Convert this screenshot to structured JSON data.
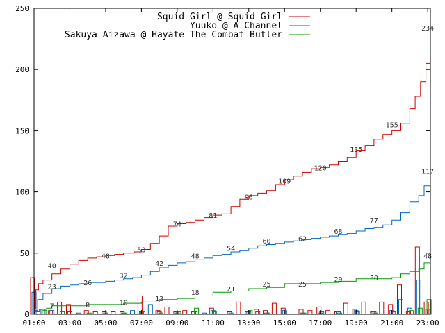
{
  "chart_data": {
    "type": "line",
    "title": "",
    "xlabel": "",
    "ylabel": "",
    "ylim": [
      0,
      250
    ],
    "yticks": [
      0,
      50,
      100,
      150,
      200,
      250
    ],
    "x_hours": [
      1,
      23.15
    ],
    "xticks": [
      "01:00",
      "03:00",
      "05:00",
      "07:00",
      "09:00",
      "11:00",
      "13:00",
      "15:00",
      "17:00",
      "19:00",
      "21:00",
      "23:00"
    ],
    "legend_position": "top-right",
    "grid": false,
    "series": [
      {
        "name": "Squid Girl @ Squid Girl",
        "color": "#cc0000",
        "cumulative": [
          [
            1.0,
            5
          ],
          [
            1.1,
            20
          ],
          [
            1.25,
            25
          ],
          [
            1.5,
            28
          ],
          [
            2,
            33
          ],
          [
            2.5,
            37
          ],
          [
            3,
            41
          ],
          [
            3.5,
            44
          ],
          [
            4,
            46
          ],
          [
            4.5,
            47
          ],
          [
            5,
            48
          ],
          [
            5.5,
            49
          ],
          [
            6,
            50
          ],
          [
            6.6,
            51
          ],
          [
            7,
            53
          ],
          [
            7.5,
            58
          ],
          [
            8,
            64
          ],
          [
            8.5,
            72
          ],
          [
            9,
            74
          ],
          [
            9.5,
            75
          ],
          [
            10,
            77
          ],
          [
            10.5,
            79
          ],
          [
            11,
            81
          ],
          [
            11.5,
            82
          ],
          [
            12,
            88
          ],
          [
            12.5,
            94
          ],
          [
            13,
            97
          ],
          [
            13.5,
            99
          ],
          [
            14,
            101
          ],
          [
            14.5,
            106
          ],
          [
            15,
            110
          ],
          [
            15.5,
            113
          ],
          [
            16,
            116
          ],
          [
            16.5,
            119
          ],
          [
            17,
            120
          ],
          [
            17.5,
            122
          ],
          [
            18,
            125
          ],
          [
            18.5,
            128
          ],
          [
            19,
            134
          ],
          [
            19.5,
            138
          ],
          [
            20,
            143
          ],
          [
            20.5,
            147
          ],
          [
            21,
            150
          ],
          [
            21.5,
            156
          ],
          [
            22,
            168
          ],
          [
            22.3,
            178
          ],
          [
            22.6,
            190
          ],
          [
            22.9,
            205
          ],
          [
            23.15,
            234
          ]
        ],
        "labels": [
          [
            2,
            40
          ],
          [
            5,
            48
          ],
          [
            7,
            53
          ],
          [
            9,
            74
          ],
          [
            11,
            81
          ],
          [
            13,
            96
          ],
          [
            15,
            109
          ],
          [
            17,
            120
          ],
          [
            19,
            135
          ],
          [
            21,
            155
          ],
          [
            23,
            234
          ]
        ],
        "hourly": [
          [
            1,
            30
          ],
          [
            2,
            3
          ],
          [
            2.5,
            10
          ],
          [
            3,
            8
          ],
          [
            4,
            3
          ],
          [
            4.5,
            2
          ],
          [
            5,
            2
          ],
          [
            5.5,
            2
          ],
          [
            6,
            2
          ],
          [
            7,
            15
          ],
          [
            8,
            3
          ],
          [
            8.5,
            6
          ],
          [
            9,
            2
          ],
          [
            9.5,
            3
          ],
          [
            10,
            2
          ],
          [
            11,
            5
          ],
          [
            12,
            2
          ],
          [
            12.5,
            10
          ],
          [
            13,
            2
          ],
          [
            13.5,
            4
          ],
          [
            14,
            3
          ],
          [
            14.5,
            9
          ],
          [
            15,
            5
          ],
          [
            16,
            4
          ],
          [
            16.5,
            3
          ],
          [
            17,
            6
          ],
          [
            17.5,
            3
          ],
          [
            18,
            2
          ],
          [
            18.5,
            9
          ],
          [
            19,
            4
          ],
          [
            19.5,
            10
          ],
          [
            20,
            2
          ],
          [
            20.5,
            10
          ],
          [
            21,
            8
          ],
          [
            21.5,
            24
          ],
          [
            22,
            2
          ],
          [
            22.5,
            55
          ],
          [
            23,
            10
          ]
        ]
      },
      {
        "name": "Yuuko @ A Channel",
        "color": "#0066bb",
        "cumulative": [
          [
            1.0,
            3
          ],
          [
            1.2,
            12
          ],
          [
            1.5,
            17
          ],
          [
            2,
            21
          ],
          [
            2.5,
            23
          ],
          [
            3,
            24
          ],
          [
            3.5,
            25
          ],
          [
            4,
            26
          ],
          [
            4.5,
            26
          ],
          [
            5,
            27
          ],
          [
            5.5,
            28
          ],
          [
            6,
            29
          ],
          [
            6.5,
            30
          ],
          [
            7,
            32
          ],
          [
            7.5,
            35
          ],
          [
            8,
            38
          ],
          [
            8.5,
            40
          ],
          [
            9,
            42
          ],
          [
            9.5,
            43
          ],
          [
            10,
            45
          ],
          [
            10.5,
            46
          ],
          [
            11,
            48
          ],
          [
            11.5,
            49
          ],
          [
            12,
            51
          ],
          [
            12.5,
            52
          ],
          [
            13,
            54
          ],
          [
            13.5,
            56
          ],
          [
            14,
            57
          ],
          [
            14.5,
            58
          ],
          [
            15,
            59
          ],
          [
            15.5,
            60
          ],
          [
            16,
            61
          ],
          [
            16.5,
            62
          ],
          [
            17,
            63
          ],
          [
            17.5,
            64
          ],
          [
            18,
            65
          ],
          [
            18.5,
            66
          ],
          [
            19,
            68
          ],
          [
            19.5,
            70
          ],
          [
            20,
            71
          ],
          [
            20.5,
            73
          ],
          [
            21,
            77
          ],
          [
            21.5,
            83
          ],
          [
            22,
            92
          ],
          [
            22.5,
            97
          ],
          [
            22.8,
            105
          ],
          [
            23.15,
            117
          ]
        ],
        "labels": [
          [
            2,
            23
          ],
          [
            4,
            26
          ],
          [
            6,
            32
          ],
          [
            8,
            42
          ],
          [
            10,
            48
          ],
          [
            12,
            54
          ],
          [
            14,
            60
          ],
          [
            16,
            62
          ],
          [
            18,
            68
          ],
          [
            20,
            77
          ],
          [
            23,
            117
          ]
        ],
        "hourly": [
          [
            1,
            18
          ],
          [
            1.5,
            4
          ],
          [
            2,
            3
          ],
          [
            3,
            2
          ],
          [
            3.5,
            1
          ],
          [
            5,
            1
          ],
          [
            6,
            1
          ],
          [
            6.5,
            3
          ],
          [
            7,
            2
          ],
          [
            7.5,
            8
          ],
          [
            8,
            2
          ],
          [
            9,
            1
          ],
          [
            10,
            2
          ],
          [
            10.5,
            1
          ],
          [
            11,
            3
          ],
          [
            12,
            1
          ],
          [
            13,
            2
          ],
          [
            13.5,
            2
          ],
          [
            14,
            1
          ],
          [
            15,
            3
          ],
          [
            16,
            1
          ],
          [
            17,
            1
          ],
          [
            18,
            2
          ],
          [
            19,
            3
          ],
          [
            20,
            2
          ],
          [
            21,
            3
          ],
          [
            21.5,
            12
          ],
          [
            22,
            5
          ],
          [
            22.5,
            28
          ],
          [
            23,
            4
          ]
        ]
      },
      {
        "name": "Sakuya Aizawa @ Hayate The Combat Butler",
        "color": "#009900",
        "cumulative": [
          [
            1.0,
            2
          ],
          [
            1.3,
            4
          ],
          [
            1.7,
            5
          ],
          [
            2,
            7
          ],
          [
            3,
            7
          ],
          [
            4,
            8
          ],
          [
            5,
            8
          ],
          [
            6,
            9
          ],
          [
            7,
            10
          ],
          [
            8,
            12
          ],
          [
            9,
            13
          ],
          [
            10,
            15
          ],
          [
            11,
            18
          ],
          [
            12,
            19
          ],
          [
            13,
            21
          ],
          [
            14,
            22
          ],
          [
            15,
            25
          ],
          [
            16,
            25
          ],
          [
            17,
            26
          ],
          [
            18,
            27
          ],
          [
            19,
            29
          ],
          [
            20,
            29
          ],
          [
            21,
            30
          ],
          [
            21.5,
            33
          ],
          [
            22,
            35
          ],
          [
            22.5,
            37
          ],
          [
            22.8,
            42
          ],
          [
            23.15,
            48
          ]
        ],
        "labels": [
          [
            2,
            7
          ],
          [
            4,
            8
          ],
          [
            6,
            10
          ],
          [
            8,
            13
          ],
          [
            10,
            18
          ],
          [
            12,
            21
          ],
          [
            14,
            25
          ],
          [
            16,
            25
          ],
          [
            18,
            29
          ],
          [
            20,
            30
          ],
          [
            23,
            48
          ]
        ],
        "hourly": [
          [
            1.5,
            3
          ],
          [
            2.5,
            2
          ],
          [
            4,
            1
          ],
          [
            6,
            1
          ],
          [
            7,
            2
          ],
          [
            8,
            1
          ],
          [
            9,
            2
          ],
          [
            10,
            5
          ],
          [
            11,
            2
          ],
          [
            13,
            3
          ],
          [
            14,
            1
          ],
          [
            16,
            1
          ],
          [
            17,
            2
          ],
          [
            18,
            1
          ],
          [
            19,
            2
          ],
          [
            20,
            1
          ],
          [
            21,
            2
          ],
          [
            22,
            3
          ],
          [
            22.5,
            5
          ],
          [
            23,
            12
          ]
        ]
      }
    ]
  }
}
